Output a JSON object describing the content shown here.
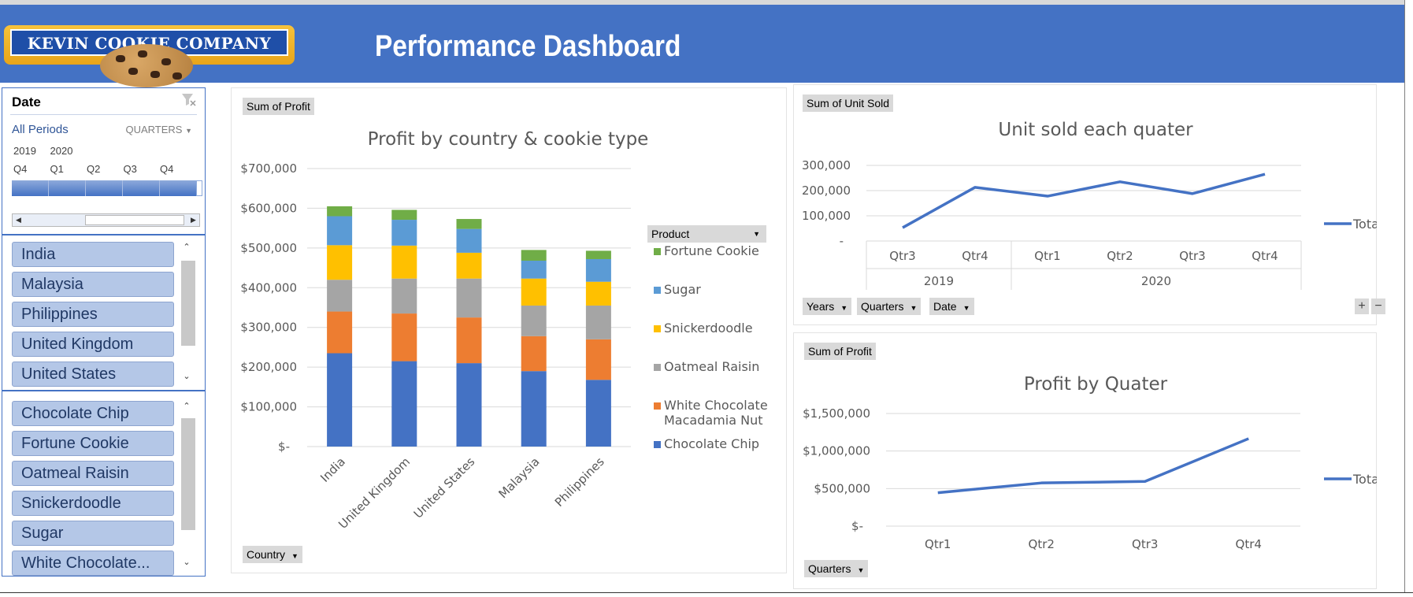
{
  "header": {
    "logo_text": "KEVIN COOKIE COMPANY",
    "title": "Performance Dashboard"
  },
  "timeline": {
    "header": "Date",
    "period": "All Periods",
    "level": "QUARTERS",
    "years": [
      "2019",
      "2020"
    ],
    "quarters": [
      "Q4",
      "Q1",
      "Q2",
      "Q3",
      "Q4"
    ]
  },
  "country_slicer": {
    "items": [
      "India",
      "Malaysia",
      "Philippines",
      "United Kingdom",
      "United States"
    ]
  },
  "product_slicer": {
    "items": [
      "Chocolate Chip",
      "Fortune Cookie",
      "Oatmeal Raisin",
      "Snickerdoodle",
      "Sugar",
      "White Chocolate..."
    ]
  },
  "colors": {
    "accent": "#4472c4",
    "chocolate_chip": "#4472c4",
    "white_chocolate": "#ed7d31",
    "oatmeal_raisin": "#a5a5a5",
    "snickerdoodle": "#ffc000",
    "sugar": "#5b9bd5",
    "fortune_cookie": "#70ad47"
  },
  "charts": {
    "profit_country": {
      "field_button": "Sum of Profit",
      "axis_button": "Country",
      "legend_button": "Product"
    },
    "units": {
      "field_button": "Sum of Unit Sold",
      "buttons": [
        "Years",
        "Quarters",
        "Date"
      ],
      "year_labels": [
        "2019",
        "2020"
      ]
    },
    "profit_quarter": {
      "field_button": "Sum of Profit",
      "axis_button": "Quarters"
    }
  },
  "chart_data": [
    {
      "id": "profit_country",
      "type": "bar",
      "stacked": true,
      "title": "Profit by country & cookie type",
      "categories": [
        "India",
        "United Kingdom",
        "United States",
        "Malaysia",
        "Philippines"
      ],
      "series": [
        {
          "name": "Chocolate Chip",
          "values": [
            235000,
            215000,
            210000,
            190000,
            168000
          ]
        },
        {
          "name": "White Chocolate Macadamia Nut",
          "values": [
            105000,
            120000,
            115000,
            88000,
            102000
          ]
        },
        {
          "name": "Oatmeal Raisin",
          "values": [
            80000,
            88000,
            98000,
            77000,
            85000
          ]
        },
        {
          "name": "Snickerdoodle",
          "values": [
            87000,
            83000,
            65000,
            68000,
            60000
          ]
        },
        {
          "name": "Sugar",
          "values": [
            73000,
            65000,
            60000,
            45000,
            57000
          ]
        },
        {
          "name": "Fortune Cookie",
          "values": [
            25000,
            25000,
            25000,
            27000,
            21000
          ]
        }
      ],
      "legend_order": [
        "Fortune Cookie",
        "Sugar",
        "Snickerdoodle",
        "Oatmeal Raisin",
        "White Chocolate Macadamia Nut",
        "Chocolate Chip"
      ],
      "yticks": [
        "$-",
        "$100,000",
        "$200,000",
        "$300,000",
        "$400,000",
        "$500,000",
        "$600,000",
        "$700,000"
      ],
      "ylim": [
        0,
        700000
      ],
      "grid": true,
      "legend": "right"
    },
    {
      "id": "units",
      "type": "line",
      "title": "Unit sold each quater",
      "categories": [
        "Qtr3",
        "Qtr4",
        "Qtr1",
        "Qtr2",
        "Qtr3",
        "Qtr4"
      ],
      "series": [
        {
          "name": "Total",
          "values": [
            53000,
            213000,
            178000,
            235000,
            188000,
            265000
          ]
        }
      ],
      "yticks": [
        "-",
        "100,000",
        "200,000",
        "300,000"
      ],
      "ylim": [
        0,
        300000
      ],
      "grid": true,
      "legend": "right"
    },
    {
      "id": "profit_quarter",
      "type": "line",
      "title": "Profit by Quater",
      "categories": [
        "Qtr1",
        "Qtr2",
        "Qtr3",
        "Qtr4"
      ],
      "series": [
        {
          "name": "Total",
          "values": [
            445000,
            575000,
            595000,
            1165000
          ]
        }
      ],
      "yticks": [
        "$-",
        "$500,000",
        "$1,000,000",
        "$1,500,000"
      ],
      "ylim": [
        0,
        1500000
      ],
      "grid": true,
      "legend": "right"
    }
  ]
}
